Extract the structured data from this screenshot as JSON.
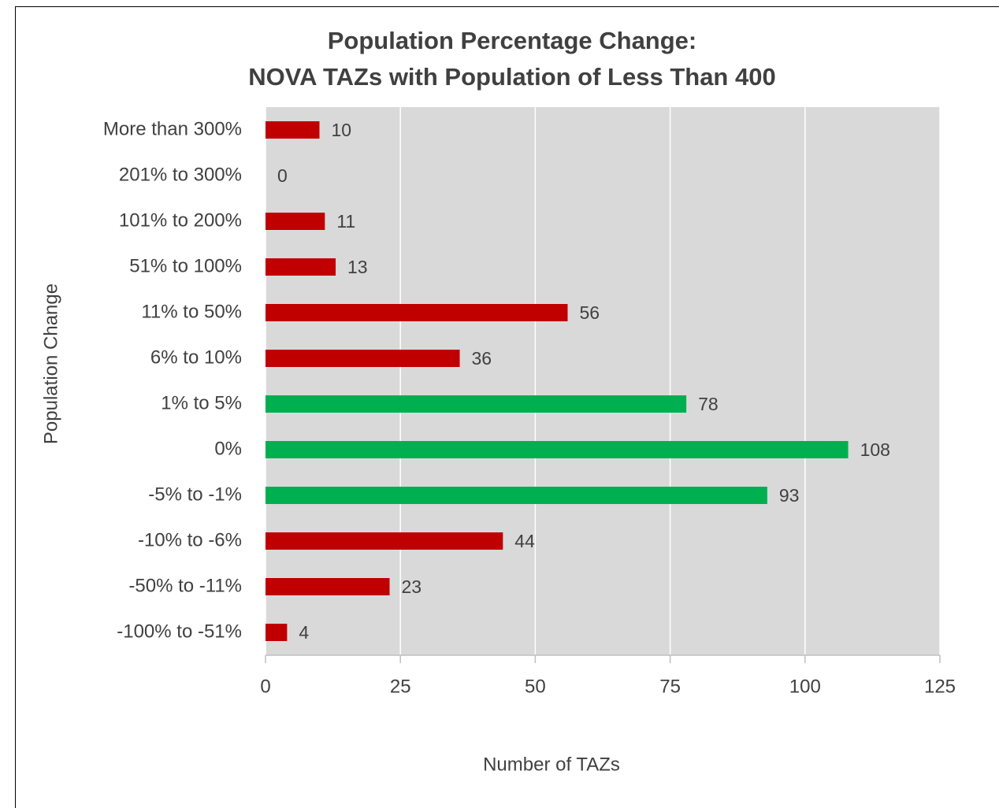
{
  "chart_data": {
    "type": "bar",
    "orientation": "horizontal",
    "title": [
      "Population Percentage Change:",
      "NOVA TAZs with Population of Less Than 400"
    ],
    "x_label": "Number of TAZs",
    "y_label": "Population Change",
    "categories": [
      "More than 300%",
      "201% to 300%",
      "101% to 200%",
      "51% to 100%",
      "11% to 50%",
      "6% to 10%",
      "1% to 5%",
      "0%",
      "-5% to -1%",
      "-10% to -6%",
      "-50% to -11%",
      "-100% to -51%"
    ],
    "values": [
      10,
      0,
      11,
      13,
      56,
      36,
      78,
      108,
      93,
      44,
      23,
      4
    ],
    "colors": [
      "#c00000",
      "#c00000",
      "#c00000",
      "#c00000",
      "#c00000",
      "#c00000",
      "#00b050",
      "#00b050",
      "#00b050",
      "#c00000",
      "#c00000",
      "#c00000"
    ],
    "xlim": [
      0,
      125
    ],
    "xticks": [
      0,
      25,
      50,
      75,
      100,
      125
    ],
    "grid": true
  }
}
